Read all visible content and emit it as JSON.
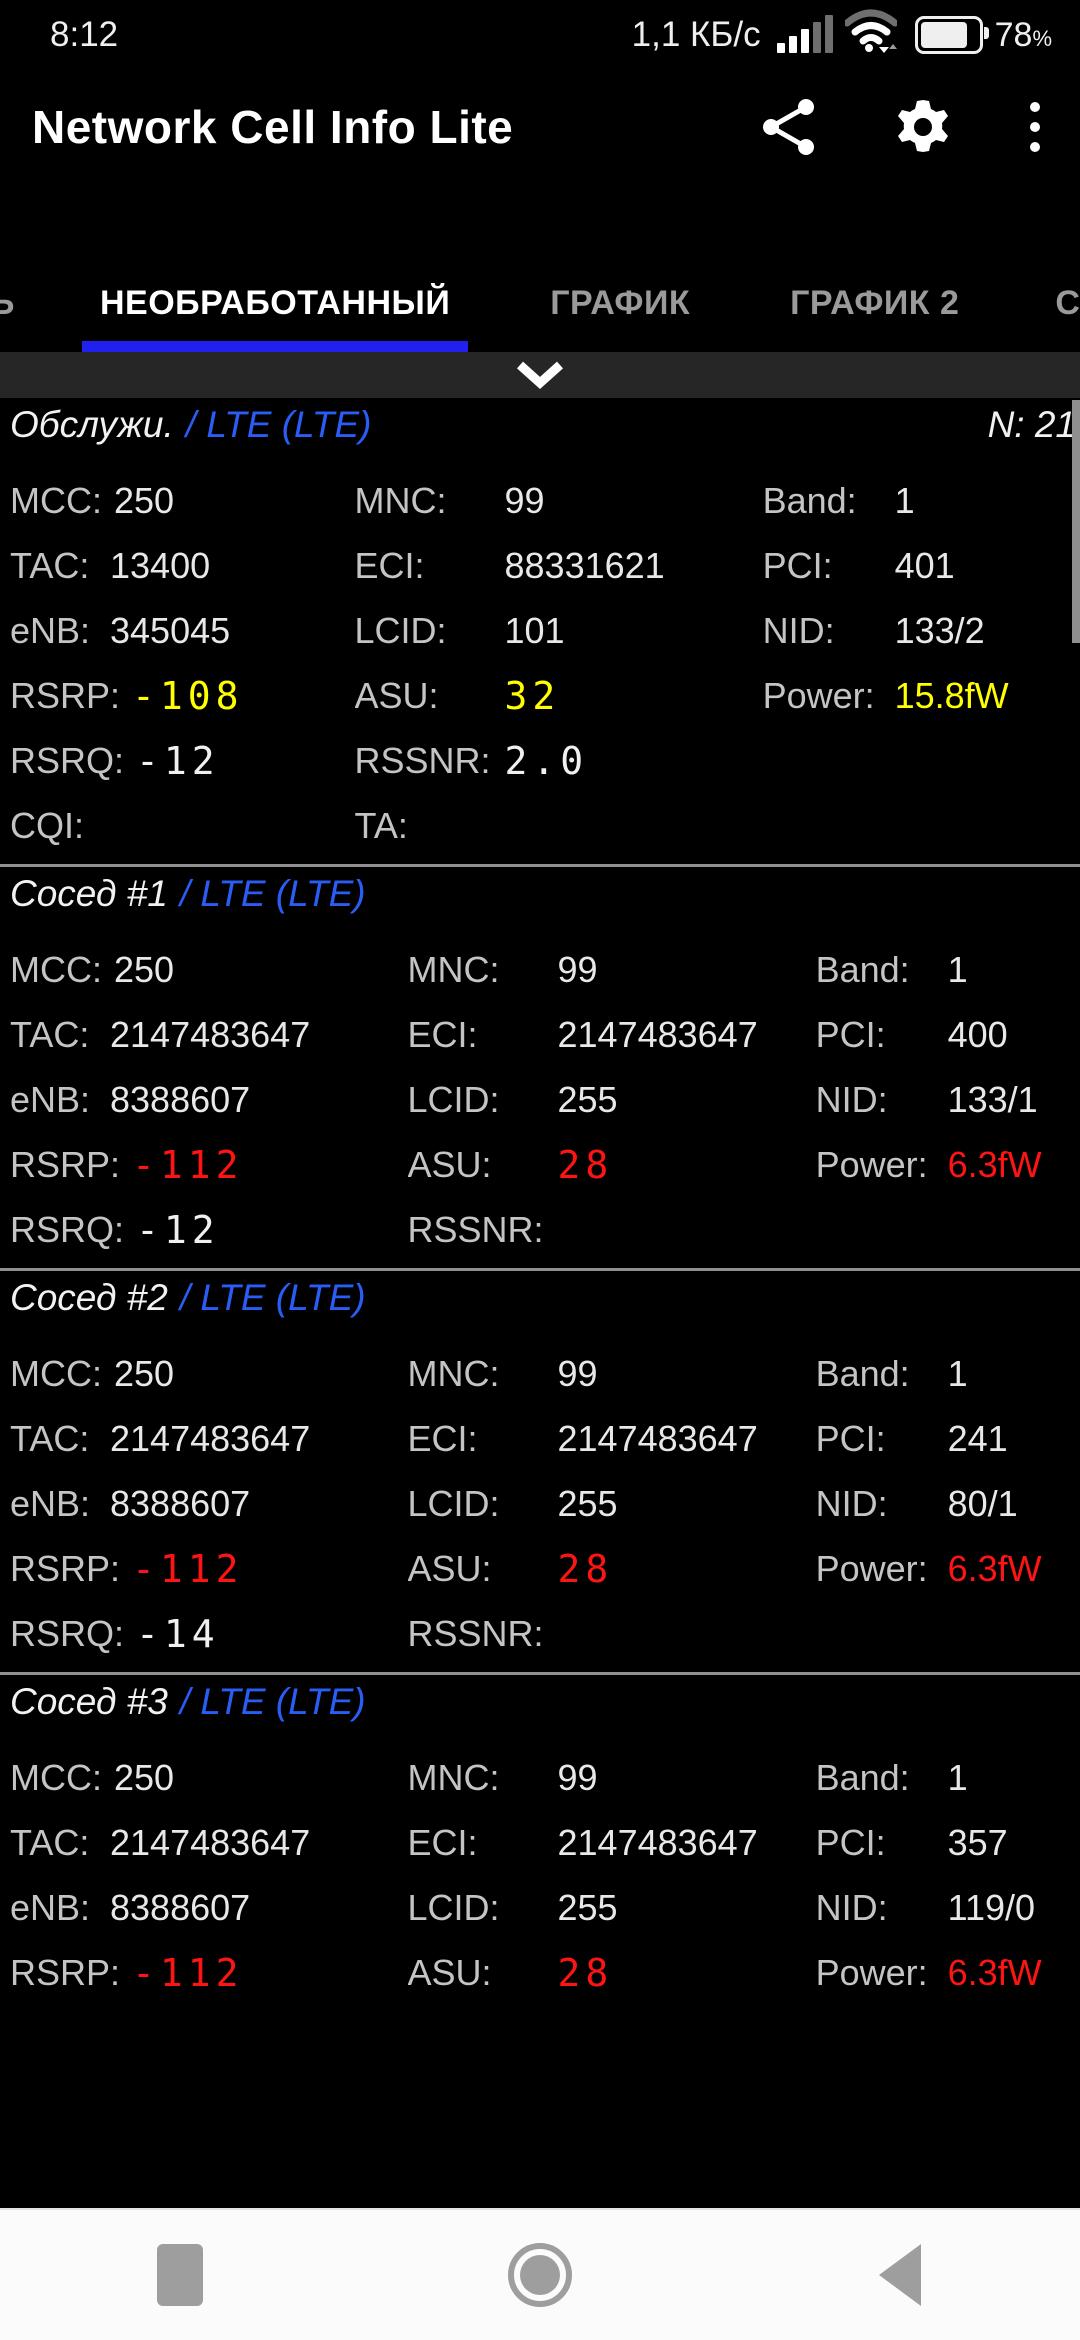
{
  "colors": {
    "accent_blue": "#2a5df5",
    "tab_underline_blue": "#2120ee",
    "value_yellow": "#ffff00",
    "value_red": "#ff1414",
    "label_gray": "#c4c4c4",
    "tab_inactive_gray": "#9a9a9a"
  },
  "status_bar": {
    "time": "8:12",
    "data_rate": "1,1 КБ/с",
    "battery_percent": "78",
    "percent_sign": "%",
    "icons": [
      "signal-bars",
      "wifi",
      "battery"
    ]
  },
  "app_bar": {
    "title": "Network Cell Info Lite",
    "icons": [
      "share",
      "settings",
      "overflow-menu"
    ]
  },
  "tabs": {
    "left_fragment": "Ь",
    "raw": "НЕОБРАБОТАННЫЙ",
    "plot": "ГРАФИК",
    "plot2": "ГРАФИК 2",
    "stats_fragment": "СТАТИС",
    "active": "НЕОБРАБОТАННЫЙ"
  },
  "expander": {
    "icon": "chevron-down"
  },
  "sections": [
    {
      "variant": "serving",
      "title": "Обслужи.",
      "network": "/ LTE (LTE)",
      "note": "N: 21",
      "rows": [
        [
          {
            "col": "c1",
            "label": "MCC:",
            "value": "250"
          },
          {
            "col": "c2",
            "label": "MNC:",
            "value": "99"
          },
          {
            "col": "c3",
            "label": "Band:",
            "value": "1"
          }
        ],
        [
          {
            "col": "c1",
            "label": "TAC:",
            "value": "13400"
          },
          {
            "col": "c2",
            "label": "ECI:",
            "value": "88331621"
          },
          {
            "col": "c3",
            "label": "PCI:",
            "value": "401"
          }
        ],
        [
          {
            "col": "c1",
            "label": "eNB:",
            "value": "345045"
          },
          {
            "col": "c2",
            "label": "LCID:",
            "value": "101"
          },
          {
            "col": "c3",
            "label": "NID:",
            "value": "133/2"
          }
        ],
        [
          {
            "col": "c1",
            "label": "RSRP:",
            "value": "-108",
            "style": "digital yellow"
          },
          {
            "col": "c2",
            "label": "ASU:",
            "value": "32",
            "style": "digital yellow"
          },
          {
            "col": "c3",
            "label": "Power:",
            "value": "15.8fW",
            "style": "yellow"
          }
        ],
        [
          {
            "col": "c1",
            "label": "RSRQ:",
            "value": "-12",
            "style": "digital white"
          },
          {
            "col": "c2",
            "label": "RSSNR:",
            "value": "2.0",
            "style": "digital white"
          },
          {
            "col": "c3"
          }
        ],
        [
          {
            "col": "c1",
            "label": "CQI:",
            "value": ""
          },
          {
            "col": "c2",
            "label": "TA:",
            "value": ""
          },
          {
            "col": "c3"
          }
        ]
      ]
    },
    {
      "variant": "neighbor",
      "title": "Сосед #1",
      "network": "/ LTE (LTE)",
      "note": "",
      "rows": [
        [
          {
            "col": "c1",
            "label": "MCC:",
            "value": "250"
          },
          {
            "col": "c2",
            "label": "MNC:",
            "value": "99"
          },
          {
            "col": "c3",
            "label": "Band:",
            "value": "1"
          }
        ],
        [
          {
            "col": "c1",
            "label": "TAC:",
            "value": "2147483647"
          },
          {
            "col": "c2",
            "label": "ECI:",
            "value": "2147483647"
          },
          {
            "col": "c3",
            "label": "PCI:",
            "value": "400"
          }
        ],
        [
          {
            "col": "c1",
            "label": "eNB:",
            "value": "8388607"
          },
          {
            "col": "c2",
            "label": "LCID:",
            "value": "255"
          },
          {
            "col": "c3",
            "label": "NID:",
            "value": "133/1"
          }
        ],
        [
          {
            "col": "c1",
            "label": "RSRP:",
            "value": "-112",
            "style": "digital red"
          },
          {
            "col": "c2",
            "label": "ASU:",
            "value": "28",
            "style": "digital red"
          },
          {
            "col": "c3",
            "label": "Power:",
            "value": "6.3fW",
            "style": "red"
          }
        ],
        [
          {
            "col": "c1",
            "label": "RSRQ:",
            "value": "-12",
            "style": "digital white"
          },
          {
            "col": "c2",
            "label": "RSSNR:",
            "value": ""
          },
          {
            "col": "c3"
          }
        ]
      ]
    },
    {
      "variant": "neighbor",
      "title": "Сосед #2",
      "network": "/ LTE (LTE)",
      "note": "",
      "rows": [
        [
          {
            "col": "c1",
            "label": "MCC:",
            "value": "250"
          },
          {
            "col": "c2",
            "label": "MNC:",
            "value": "99"
          },
          {
            "col": "c3",
            "label": "Band:",
            "value": "1"
          }
        ],
        [
          {
            "col": "c1",
            "label": "TAC:",
            "value": "2147483647"
          },
          {
            "col": "c2",
            "label": "ECI:",
            "value": "2147483647"
          },
          {
            "col": "c3",
            "label": "PCI:",
            "value": "241"
          }
        ],
        [
          {
            "col": "c1",
            "label": "eNB:",
            "value": "8388607"
          },
          {
            "col": "c2",
            "label": "LCID:",
            "value": "255"
          },
          {
            "col": "c3",
            "label": "NID:",
            "value": "80/1"
          }
        ],
        [
          {
            "col": "c1",
            "label": "RSRP:",
            "value": "-112",
            "style": "digital red"
          },
          {
            "col": "c2",
            "label": "ASU:",
            "value": "28",
            "style": "digital red"
          },
          {
            "col": "c3",
            "label": "Power:",
            "value": "6.3fW",
            "style": "red"
          }
        ],
        [
          {
            "col": "c1",
            "label": "RSRQ:",
            "value": "-14",
            "style": "digital white"
          },
          {
            "col": "c2",
            "label": "RSSNR:",
            "value": ""
          },
          {
            "col": "c3"
          }
        ]
      ]
    },
    {
      "variant": "neighbor",
      "title": "Сосед #3",
      "network": "/ LTE (LTE)",
      "note": "",
      "rows": [
        [
          {
            "col": "c1",
            "label": "MCC:",
            "value": "250"
          },
          {
            "col": "c2",
            "label": "MNC:",
            "value": "99"
          },
          {
            "col": "c3",
            "label": "Band:",
            "value": "1"
          }
        ],
        [
          {
            "col": "c1",
            "label": "TAC:",
            "value": "2147483647"
          },
          {
            "col": "c2",
            "label": "ECI:",
            "value": "2147483647"
          },
          {
            "col": "c3",
            "label": "PCI:",
            "value": "357"
          }
        ],
        [
          {
            "col": "c1",
            "label": "eNB:",
            "value": "8388607"
          },
          {
            "col": "c2",
            "label": "LCID:",
            "value": "255"
          },
          {
            "col": "c3",
            "label": "NID:",
            "value": "119/0"
          }
        ],
        [
          {
            "col": "c1",
            "label": "RSRP:",
            "value": "-112",
            "style": "digital red"
          },
          {
            "col": "c2",
            "label": "ASU:",
            "value": "28",
            "style": "digital red"
          },
          {
            "col": "c3",
            "label": "Power:",
            "value": "6.3fW",
            "style": "red"
          }
        ]
      ]
    }
  ],
  "nav_bar": {
    "buttons": [
      "recents",
      "home",
      "back"
    ]
  }
}
